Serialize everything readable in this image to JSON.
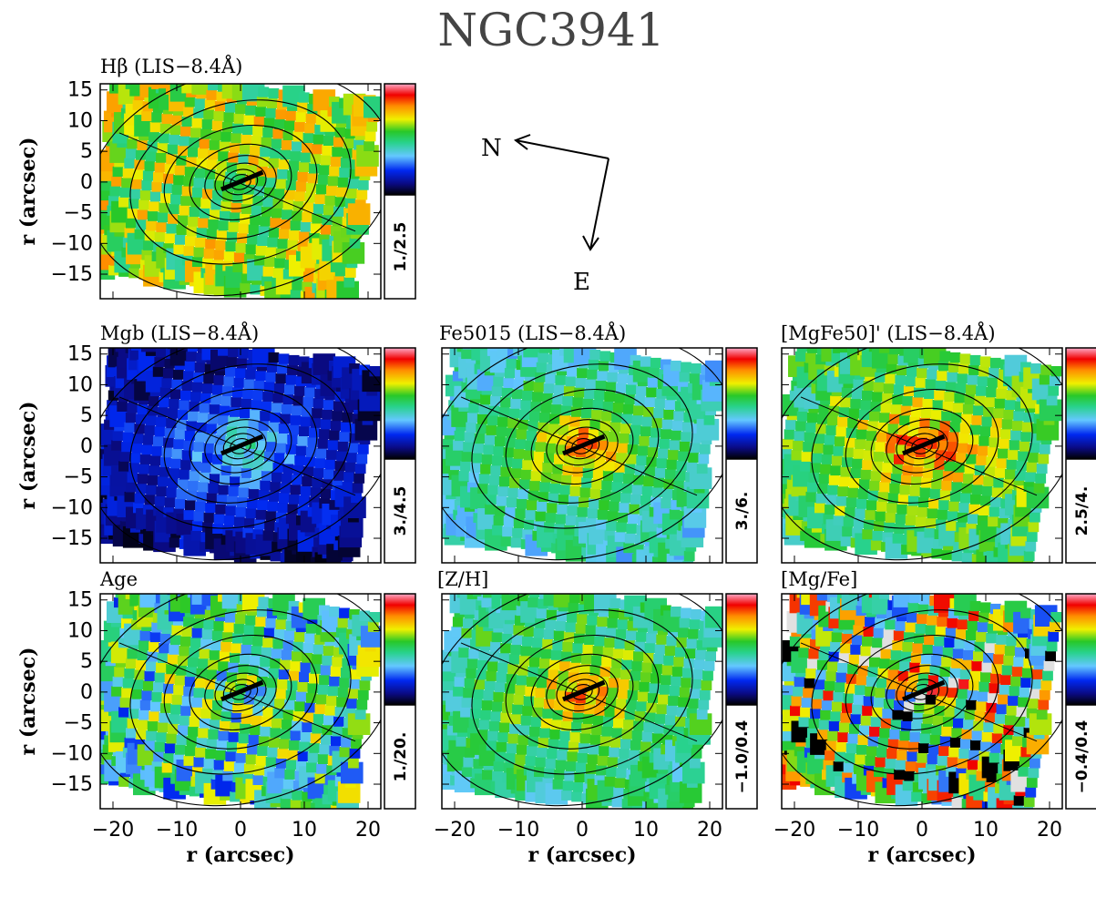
{
  "title": "NGC3941",
  "compass": {
    "north_label": "N",
    "east_label": "E"
  },
  "axis_label": "r (arcsec)",
  "x_ticks": [
    -20,
    -10,
    0,
    10,
    20
  ],
  "y_ticks": [
    15,
    10,
    5,
    0,
    -5,
    -10,
    -15
  ],
  "chart_data": {
    "type": "heatmap",
    "xlim": [
      -22,
      22
    ],
    "ylim": [
      -19,
      16
    ],
    "xlabel": "r (arcsec)",
    "ylabel": "r (arcsec)",
    "panels": [
      {
        "key": "hbeta",
        "title": "Hβ (LIS−8.4Å)",
        "range_label": "1./2.5",
        "range": [
          1.0,
          2.5
        ],
        "center_level": 0.6,
        "edge_level": 0.62,
        "noise": 0.18
      },
      {
        "key": "mgb",
        "title": "Mgb (LIS−8.4Å)",
        "range_label": "3./4.5",
        "range": [
          3.0,
          4.5
        ],
        "center_level": 0.5,
        "edge_level": 0.1,
        "noise": 0.1
      },
      {
        "key": "fe5015",
        "title": "Fe5015 (LIS−8.4Å)",
        "range_label": "3./6.",
        "range": [
          3.0,
          6.0
        ],
        "center_level": 0.88,
        "edge_level": 0.4,
        "noise": 0.12
      },
      {
        "key": "mgfe50",
        "title": "[MgFe50]' (LIS−8.4Å)",
        "range_label": "2.5/4.",
        "range": [
          2.5,
          4.0
        ],
        "center_level": 0.92,
        "edge_level": 0.5,
        "noise": 0.14
      },
      {
        "key": "age",
        "title": "Age",
        "range_label": "1./20.",
        "range": [
          1.0,
          20.0
        ],
        "center_level": 0.55,
        "edge_level": 0.45,
        "noise": 0.25
      },
      {
        "key": "zh",
        "title": "[Z/H]",
        "range_label": "−1.0/0.4",
        "range": [
          -1.0,
          0.4
        ],
        "center_level": 0.85,
        "edge_level": 0.45,
        "noise": 0.12
      },
      {
        "key": "mgfe",
        "title": "[Mg/Fe]",
        "range_label": "−0.4/0.4",
        "range": [
          -0.4,
          0.4
        ],
        "center_level": 0.6,
        "edge_level": 0.55,
        "noise": 0.35
      }
    ]
  }
}
